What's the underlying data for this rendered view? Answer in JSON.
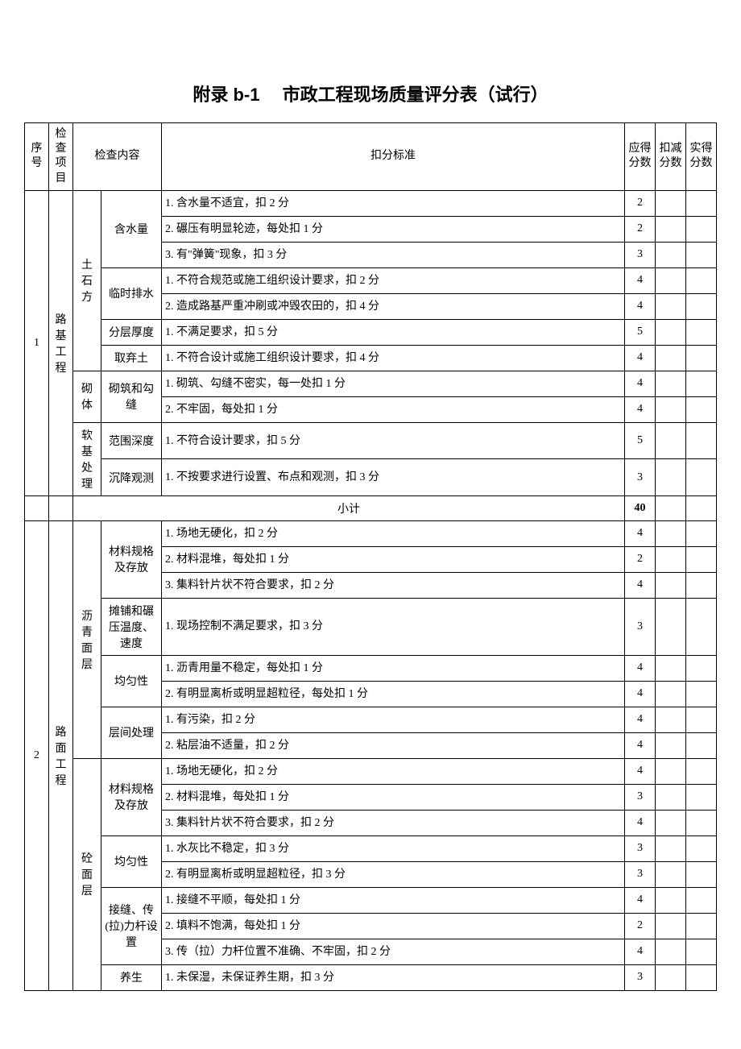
{
  "title": "附录 b-1　 市政工程现场质量评分表（试行）",
  "headers": {
    "no": "序号",
    "project": "检查项目",
    "content": "检查内容",
    "criteria": "扣分标准",
    "shouldScore": "应得分数",
    "deduct": "扣减分数",
    "actual": "实得分数"
  },
  "subtotalLabel": "小计",
  "subtotalValue": "40",
  "groups": [
    {
      "no": "1",
      "project": "路基工程",
      "subs": [
        {
          "sub1": "土石方",
          "items": [
            {
              "sub2": "含水量",
              "rows": [
                {
                  "criteria": "1. 含水量不适宜，扣 2 分",
                  "score": "2"
                },
                {
                  "criteria": "2. 碾压有明显轮迹，每处扣 1 分",
                  "score": "2"
                },
                {
                  "criteria": "3. 有\"弹簧\"现象，扣 3 分",
                  "score": "3"
                }
              ]
            },
            {
              "sub2": "临时排水",
              "rows": [
                {
                  "criteria": "1. 不符合规范或施工组织设计要求，扣 2 分",
                  "score": "4"
                },
                {
                  "criteria": "2. 造成路基严重冲刷或冲毁农田的，扣 4 分",
                  "score": "4"
                }
              ]
            },
            {
              "sub2": "分层厚度",
              "rows": [
                {
                  "criteria": "1. 不满足要求，扣 5 分",
                  "score": "5"
                }
              ]
            },
            {
              "sub2": "取弃土",
              "rows": [
                {
                  "criteria": "1. 不符合设计或施工组织设计要求，扣 4 分",
                  "score": "4"
                }
              ]
            }
          ]
        },
        {
          "sub1": "砌体",
          "items": [
            {
              "sub2": "砌筑和勾缝",
              "rows": [
                {
                  "criteria": "1. 砌筑、勾缝不密实，每一处扣 1 分",
                  "score": "4"
                },
                {
                  "criteria": "2. 不牢固，每处扣 1 分",
                  "score": "4"
                }
              ]
            }
          ]
        },
        {
          "sub1": "软基处理",
          "items": [
            {
              "sub2": "范围深度",
              "rows": [
                {
                  "criteria": "1. 不符合设计要求，扣 5 分",
                  "score": "5"
                }
              ]
            },
            {
              "sub2": "沉降观测",
              "rows": [
                {
                  "criteria": "1. 不按要求进行设置、布点和观测，扣 3 分",
                  "score": "3"
                }
              ]
            }
          ]
        }
      ]
    },
    {
      "no": "2",
      "project": "路面工程",
      "subs": [
        {
          "sub1": "沥青面层",
          "items": [
            {
              "sub2": "材料规格及存放",
              "rows": [
                {
                  "criteria": "1. 场地无硬化，扣 2 分",
                  "score": "4"
                },
                {
                  "criteria": "2. 材料混堆，每处扣 1 分",
                  "score": "2"
                },
                {
                  "criteria": "3. 集料针片状不符合要求，扣 2 分",
                  "score": "4"
                }
              ]
            },
            {
              "sub2": "摊铺和碾压温度、速度",
              "rows": [
                {
                  "criteria": "1. 现场控制不满足要求，扣 3 分",
                  "score": "3"
                }
              ]
            },
            {
              "sub2": "均匀性",
              "rows": [
                {
                  "criteria": "1. 沥青用量不稳定，每处扣 1 分",
                  "score": "4"
                },
                {
                  "criteria": "2. 有明显离析或明显超粒径，每处扣 1 分",
                  "score": "4"
                }
              ]
            },
            {
              "sub2": "层间处理",
              "rows": [
                {
                  "criteria": "1. 有污染，扣 2 分",
                  "score": "4"
                },
                {
                  "criteria": "2. 粘层油不适量，扣 2 分",
                  "score": "4"
                }
              ]
            }
          ]
        },
        {
          "sub1": "砼面层",
          "items": [
            {
              "sub2": "材料规格及存放",
              "rows": [
                {
                  "criteria": "1. 场地无硬化，扣 2 分",
                  "score": "4"
                },
                {
                  "criteria": "2. 材料混堆，每处扣 1 分",
                  "score": "3"
                },
                {
                  "criteria": "3. 集料针片状不符合要求，扣 2 分",
                  "score": "4"
                }
              ]
            },
            {
              "sub2": "均匀性",
              "rows": [
                {
                  "criteria": "1. 水灰比不稳定，扣 3 分",
                  "score": "3"
                },
                {
                  "criteria": "2. 有明显离析或明显超粒径，扣 3 分",
                  "score": "3"
                }
              ]
            },
            {
              "sub2": "接缝、传(拉)力杆设置",
              "rows": [
                {
                  "criteria": "1. 接缝不平顺，每处扣 1 分",
                  "score": "4"
                },
                {
                  "criteria": "2. 填料不饱满，每处扣 1 分",
                  "score": "2"
                },
                {
                  "criteria": "3. 传（拉）力杆位置不准确、不牢固，扣 2 分",
                  "score": "4"
                }
              ]
            },
            {
              "sub2": "养生",
              "rows": [
                {
                  "criteria": "1. 未保湿，未保证养生期，扣 3 分",
                  "score": "3"
                }
              ]
            }
          ]
        }
      ]
    }
  ]
}
